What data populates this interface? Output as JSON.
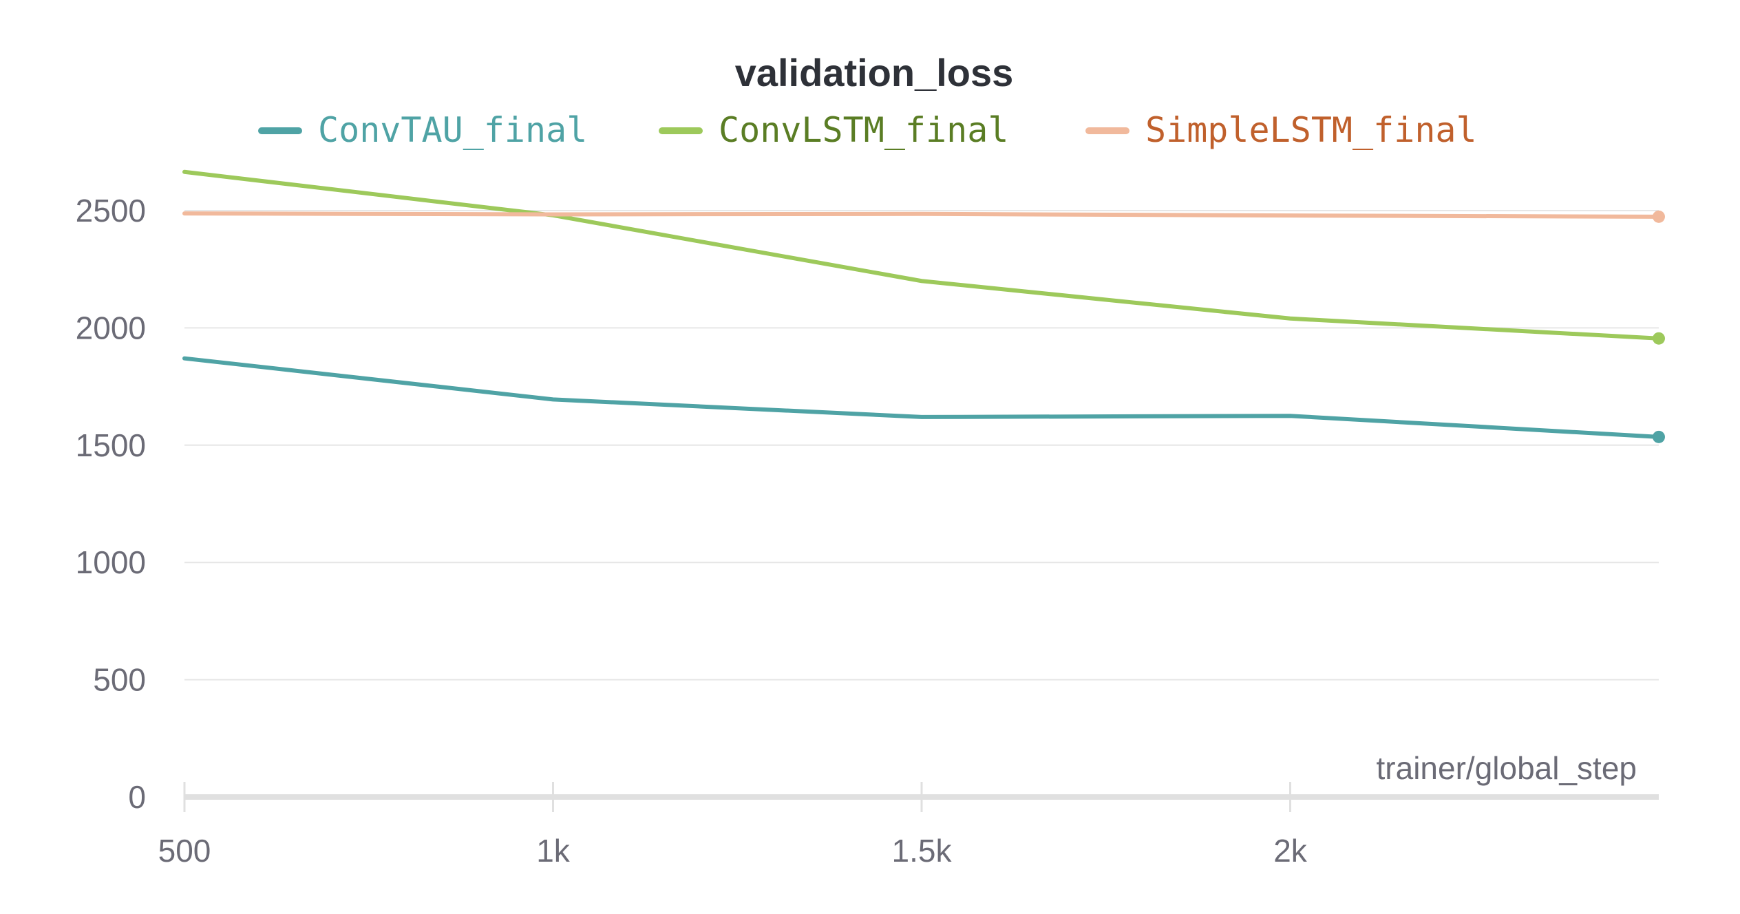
{
  "chart_data": {
    "type": "line",
    "title": "validation_loss",
    "xlabel": "trainer/global_step",
    "ylabel": "",
    "x": [
      500,
      1000,
      1500,
      2000,
      2500
    ],
    "xlim": [
      500,
      2500
    ],
    "ylim": [
      0,
      2650
    ],
    "x_ticks": [
      500,
      1000,
      1500,
      2000
    ],
    "x_tick_labels": [
      "500",
      "1k",
      "1.5k",
      "2k"
    ],
    "y_ticks": [
      0,
      500,
      1000,
      1500,
      2000,
      2500
    ],
    "y_tick_labels": [
      "0",
      "500",
      "1000",
      "1500",
      "2000",
      "2500"
    ],
    "grid": true,
    "legend_position": "top",
    "series": [
      {
        "name": "ConvTAU_final",
        "color": "#4fa3a5",
        "text_color": "#4fa3a5",
        "values": [
          1870,
          1695,
          1620,
          1625,
          1535
        ]
      },
      {
        "name": "ConvLSTM_final",
        "color": "#9dc95b",
        "text_color": "#5a7d24",
        "values": [
          2665,
          2480,
          2200,
          2040,
          1955
        ]
      },
      {
        "name": "SimpleLSTM_final",
        "color": "#f1b99c",
        "text_color": "#c0602c",
        "values": [
          2488,
          2484,
          2486,
          2479,
          2474
        ]
      }
    ]
  }
}
